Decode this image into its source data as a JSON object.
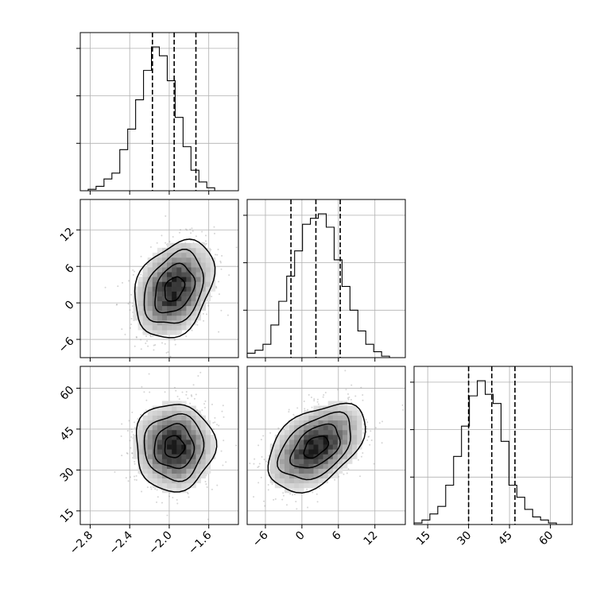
{
  "chart_data": {
    "type": "corner",
    "parameters": [
      {
        "range": [
          -2.9,
          -1.3
        ],
        "ticks": [
          -2.8,
          -2.4,
          -2.0,
          -1.6
        ],
        "tick_labels": [
          "−2.8",
          "−2.4",
          "−2.0",
          "−1.6"
        ],
        "mean": -1.95,
        "sigma": 0.2,
        "quantiles": [
          -2.17,
          -1.95,
          -1.73
        ],
        "hist_bin_width": 0.08,
        "hist_counts": [
          0,
          1,
          3,
          8,
          12,
          28,
          42,
          62,
          82,
          98,
          92,
          75,
          50,
          30,
          14,
          6,
          2,
          0,
          0,
          0
        ]
      },
      {
        "range": [
          -9,
          17
        ],
        "ticks": [
          -6,
          0,
          6,
          12
        ],
        "tick_labels": [
          "−6",
          "0",
          "6",
          "12"
        ],
        "mean": 2.3,
        "sigma": 4,
        "quantiles": [
          -1.8,
          2.3,
          6.3
        ],
        "hist_bin_width": 1.3,
        "hist_counts": [
          3,
          5,
          9,
          22,
          38,
          55,
          72,
          90,
          94,
          97,
          88,
          66,
          48,
          32,
          18,
          9,
          4,
          1,
          0,
          0
        ]
      },
      {
        "range": [
          10,
          68
        ],
        "ticks": [
          15,
          30,
          45,
          60
        ],
        "tick_labels": [
          "15",
          "30",
          "45",
          "60"
        ],
        "mean": 38.5,
        "sigma": 8,
        "quantiles": [
          30,
          38.5,
          47
        ],
        "hist_bin_width": 2.9,
        "hist_counts": [
          1,
          3,
          7,
          12,
          26,
          45,
          65,
          85,
          95,
          86,
          80,
          55,
          26,
          18,
          10,
          5,
          3,
          1,
          0,
          0
        ]
      }
    ],
    "correlations": {
      "1-0": 0.3,
      "2-0": 0.0,
      "2-1": 0.45
    },
    "contour_levels_sigma": [
      0.5,
      1.0,
      1.5,
      2.0
    ],
    "grid": true,
    "xlabels": [
      "",
      "",
      ""
    ],
    "ylabels": [
      "",
      "",
      ""
    ],
    "colors": {
      "line": "#000000",
      "grid": "#b0b0b0",
      "points": "#888888"
    }
  }
}
